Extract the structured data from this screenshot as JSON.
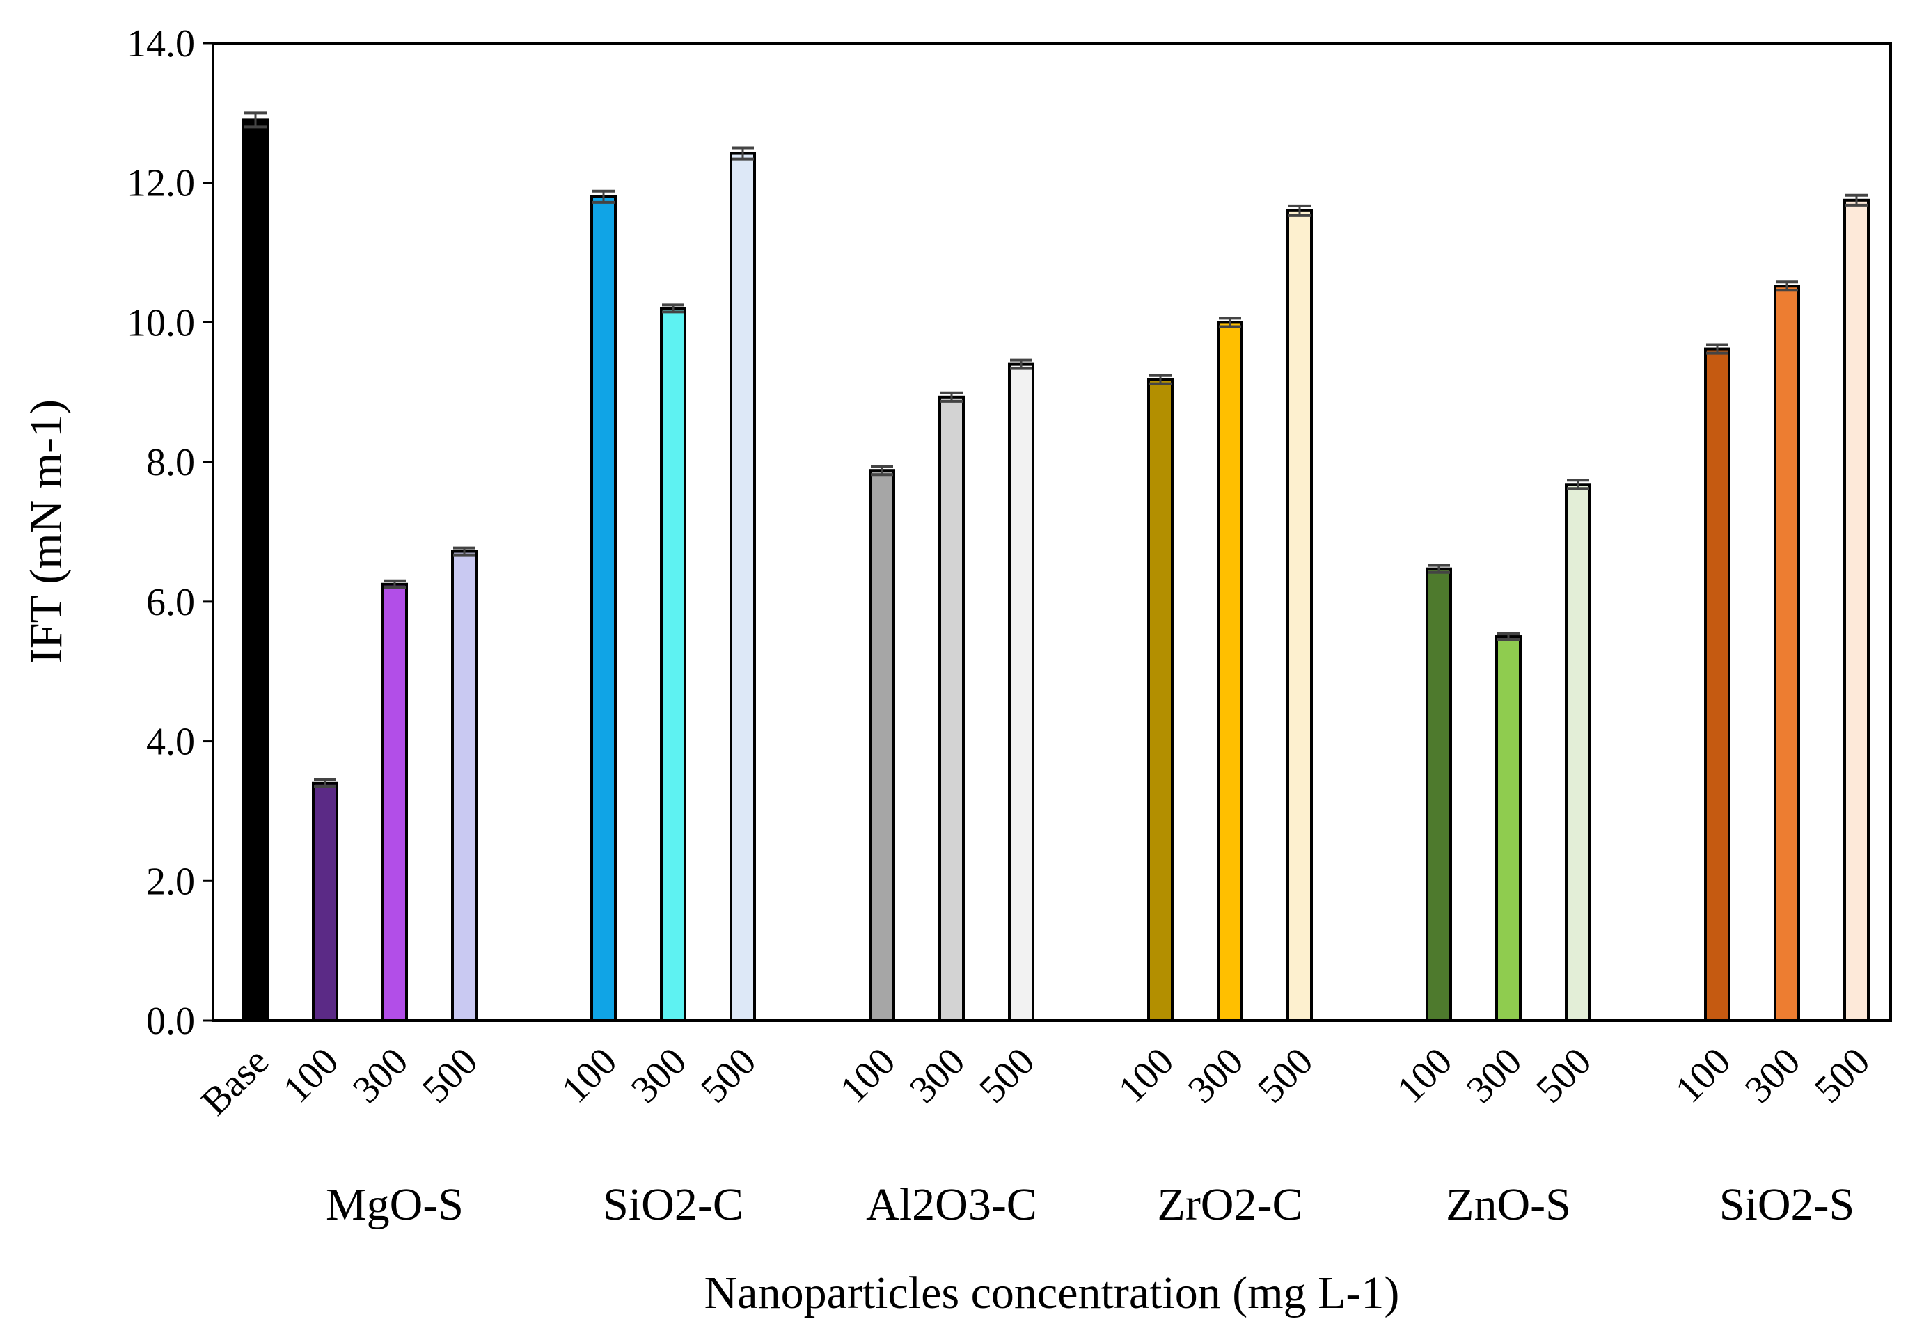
{
  "chart_data": {
    "type": "bar",
    "title": "",
    "xlabel": "Nanoparticles concentration (mg L-1)",
    "ylabel": "IFT (mN m-1)",
    "ylim": [
      0,
      14
    ],
    "yticks": [
      "0.0",
      "2.0",
      "4.0",
      "6.0",
      "8.0",
      "10.0",
      "12.0",
      "14.0"
    ],
    "grid": false,
    "legend": "none",
    "groups": [
      {
        "name": "",
        "bars": [
          {
            "label": "Base",
            "value": 12.9,
            "error": 0.1,
            "color": "#000000"
          }
        ]
      },
      {
        "name": "MgO-S",
        "bars": [
          {
            "label": "100",
            "value": 3.4,
            "error": 0.05,
            "color": "#5b2a86"
          },
          {
            "label": "300",
            "value": 6.25,
            "error": 0.05,
            "color": "#b24ee8"
          },
          {
            "label": "500",
            "value": 6.72,
            "error": 0.05,
            "color": "#c9c9f2"
          }
        ]
      },
      {
        "name": "SiO2-C",
        "bars": [
          {
            "label": "100",
            "value": 11.8,
            "error": 0.08,
            "color": "#10a4e6"
          },
          {
            "label": "300",
            "value": 10.2,
            "error": 0.05,
            "color": "#5ef2f2"
          },
          {
            "label": "500",
            "value": 12.42,
            "error": 0.08,
            "color": "#dde8f7"
          }
        ]
      },
      {
        "name": "Al2O3-C",
        "bars": [
          {
            "label": "100",
            "value": 7.88,
            "error": 0.06,
            "color": "#a6a6a6"
          },
          {
            "label": "300",
            "value": 8.93,
            "error": 0.06,
            "color": "#d3d3d3"
          },
          {
            "label": "500",
            "value": 9.4,
            "error": 0.06,
            "color": "#f2f2f2"
          }
        ]
      },
      {
        "name": "ZrO2-C",
        "bars": [
          {
            "label": "100",
            "value": 9.18,
            "error": 0.06,
            "color": "#b38f00"
          },
          {
            "label": "300",
            "value": 10.0,
            "error": 0.06,
            "color": "#ffbf00"
          },
          {
            "label": "500",
            "value": 11.6,
            "error": 0.07,
            "color": "#fdf0cf"
          }
        ]
      },
      {
        "name": "ZnO-S",
        "bars": [
          {
            "label": "100",
            "value": 6.47,
            "error": 0.05,
            "color": "#4e7a2d"
          },
          {
            "label": "300",
            "value": 5.5,
            "error": 0.04,
            "color": "#8fcc4f"
          },
          {
            "label": "500",
            "value": 7.68,
            "error": 0.06,
            "color": "#e3eed7"
          }
        ]
      },
      {
        "name": "SiO2-S",
        "bars": [
          {
            "label": "100",
            "value": 9.62,
            "error": 0.06,
            "color": "#c55a11"
          },
          {
            "label": "300",
            "value": 10.52,
            "error": 0.06,
            "color": "#ed7d31"
          },
          {
            "label": "500",
            "value": 11.75,
            "error": 0.07,
            "color": "#fde9d9"
          }
        ]
      }
    ]
  }
}
